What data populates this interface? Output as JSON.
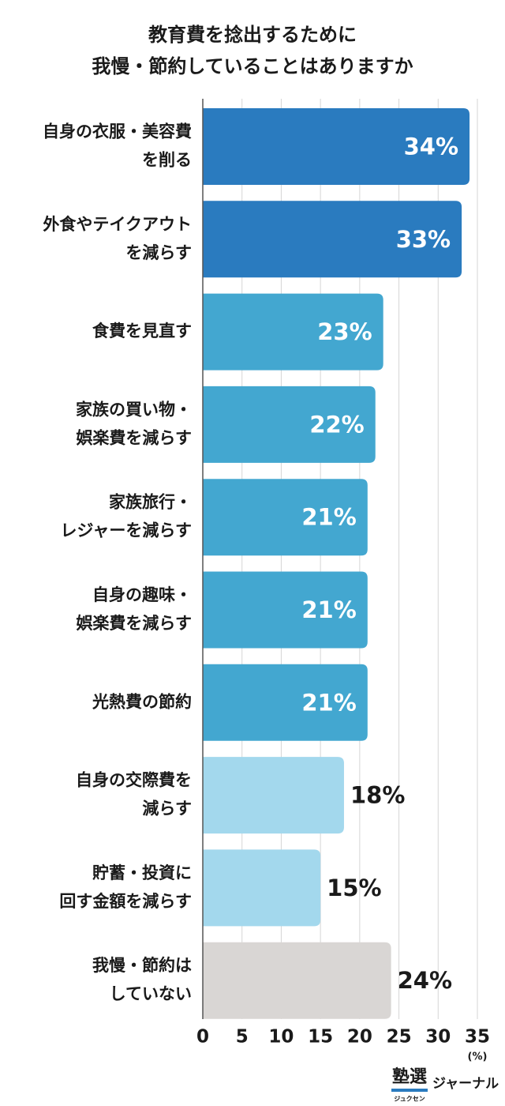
{
  "chart_data": {
    "type": "barh",
    "title": [
      "教育費を捻出するために",
      "我慢・節約していることはありますか"
    ],
    "categories": [
      [
        "自身の衣服・美容費",
        "を削る"
      ],
      [
        "外食やテイクアウト",
        "を減らす"
      ],
      [
        "食費を見直す"
      ],
      [
        "家族の買い物・",
        "娯楽費を減らす"
      ],
      [
        "家族旅行・",
        "レジャーを減らす"
      ],
      [
        "自身の趣味・",
        "娯楽費を減らす"
      ],
      [
        "光熱費の節約"
      ],
      [
        "自身の交際費を",
        "減らす"
      ],
      [
        "貯蓄・投資に",
        "回す金額を減らす"
      ],
      [
        "我慢・節約は",
        "していない"
      ]
    ],
    "values": [
      34,
      33,
      23,
      22,
      21,
      21,
      21,
      18,
      15,
      24
    ],
    "value_labels": [
      "34%",
      "33%",
      "23%",
      "22%",
      "21%",
      "21%",
      "21%",
      "18%",
      "15%",
      "24%"
    ],
    "colors": [
      "#2a7bbf",
      "#2a7bbf",
      "#43a7d0",
      "#43a7d0",
      "#43a7d0",
      "#43a7d0",
      "#43a7d0",
      "#a3d8ed",
      "#a3d8ed",
      "#d9d6d4"
    ],
    "xlim": [
      0,
      35
    ],
    "xticks": [
      0,
      5,
      10,
      15,
      20,
      25,
      30,
      35
    ],
    "x_unit": "(%)",
    "grid": true
  },
  "footer": {
    "logo": "塾選",
    "reading": "ジュクセン",
    "name": "ジャーナル"
  }
}
